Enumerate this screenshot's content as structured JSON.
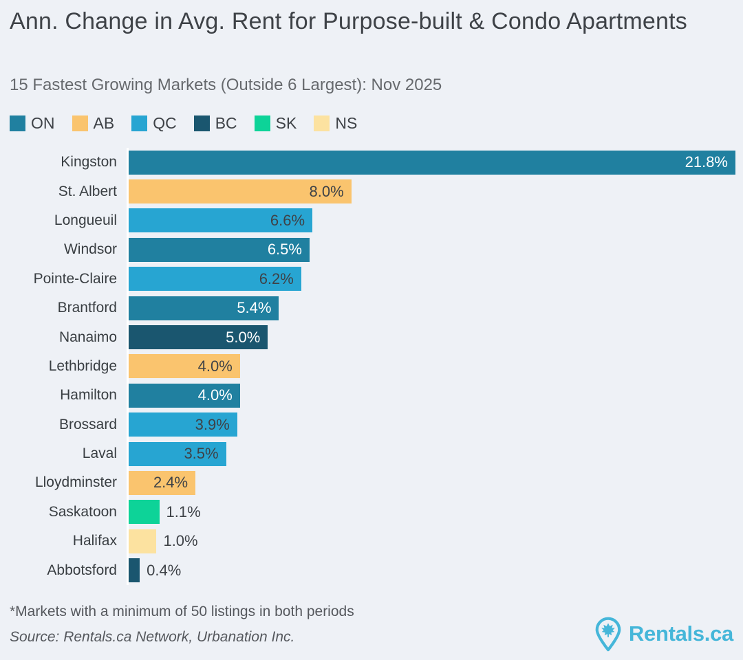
{
  "header": {
    "title": "Ann. Change in Avg. Rent for Purpose-built & Condo Apartments",
    "subtitle": "15 Fastest Growing Markets (Outside 6 Largest): Nov 2025"
  },
  "legend": [
    {
      "label": "ON",
      "color": "#2080a0"
    },
    {
      "label": "AB",
      "color": "#fac46e"
    },
    {
      "label": "QC",
      "color": "#27a5d2"
    },
    {
      "label": "BC",
      "color": "#1a566f"
    },
    {
      "label": "SK",
      "color": "#0dd398"
    },
    {
      "label": "NS",
      "color": "#fce2a0"
    }
  ],
  "chart_data": {
    "type": "bar",
    "orientation": "horizontal",
    "title": "Ann. Change in Avg. Rent for Purpose-built & Condo Apartments",
    "subtitle": "15 Fastest Growing Markets (Outside 6 Largest): Nov 2025",
    "unit": "%",
    "xlim": [
      0,
      21.8
    ],
    "grid": false,
    "legend_position": "top",
    "categories": [
      "Kingston",
      "St. Albert",
      "Longueuil",
      "Windsor",
      "Pointe-Claire",
      "Brantford",
      "Nanaimo",
      "Lethbridge",
      "Hamilton",
      "Brossard",
      "Laval",
      "Lloydminster",
      "Saskatoon",
      "Halifax",
      "Abbotsford"
    ],
    "values": [
      21.8,
      8.0,
      6.6,
      6.5,
      6.2,
      5.4,
      5.0,
      4.0,
      4.0,
      3.9,
      3.5,
      2.4,
      1.1,
      1.0,
      0.4
    ],
    "rows": [
      {
        "market": "Kingston",
        "province": "ON",
        "value": 21.8,
        "value_label": "21.8%",
        "label_inside": true
      },
      {
        "market": "St. Albert",
        "province": "AB",
        "value": 8.0,
        "value_label": "8.0%",
        "label_inside": true
      },
      {
        "market": "Longueuil",
        "province": "QC",
        "value": 6.6,
        "value_label": "6.6%",
        "label_inside": true
      },
      {
        "market": "Windsor",
        "province": "ON",
        "value": 6.5,
        "value_label": "6.5%",
        "label_inside": true
      },
      {
        "market": "Pointe-Claire",
        "province": "QC",
        "value": 6.2,
        "value_label": "6.2%",
        "label_inside": true
      },
      {
        "market": "Brantford",
        "province": "ON",
        "value": 5.4,
        "value_label": "5.4%",
        "label_inside": true
      },
      {
        "market": "Nanaimo",
        "province": "BC",
        "value": 5.0,
        "value_label": "5.0%",
        "label_inside": true
      },
      {
        "market": "Lethbridge",
        "province": "AB",
        "value": 4.0,
        "value_label": "4.0%",
        "label_inside": true
      },
      {
        "market": "Hamilton",
        "province": "ON",
        "value": 4.0,
        "value_label": "4.0%",
        "label_inside": true
      },
      {
        "market": "Brossard",
        "province": "QC",
        "value": 3.9,
        "value_label": "3.9%",
        "label_inside": true
      },
      {
        "market": "Laval",
        "province": "QC",
        "value": 3.5,
        "value_label": "3.5%",
        "label_inside": true
      },
      {
        "market": "Lloydminster",
        "province": "AB",
        "value": 2.4,
        "value_label": "2.4%",
        "label_inside": true
      },
      {
        "market": "Saskatoon",
        "province": "SK",
        "value": 1.1,
        "value_label": "1.1%",
        "label_inside": false
      },
      {
        "market": "Halifax",
        "province": "NS",
        "value": 1.0,
        "value_label": "1.0%",
        "label_inside": false
      },
      {
        "market": "Abbotsford",
        "province": "BC",
        "value": 0.4,
        "value_label": "0.4%",
        "label_inside": false
      }
    ]
  },
  "footer": {
    "footnote": "*Markets with a minimum of 50 listings in both periods",
    "source": "Source: Rentals.ca Network, Urbanation Inc.",
    "logo_text": "Rentals.ca",
    "logo_color": "#45b6d9"
  },
  "colors": {
    "background": "#eef1f6",
    "bar_label_light": "#ffffff",
    "bar_label_dark": "#3e4247"
  }
}
